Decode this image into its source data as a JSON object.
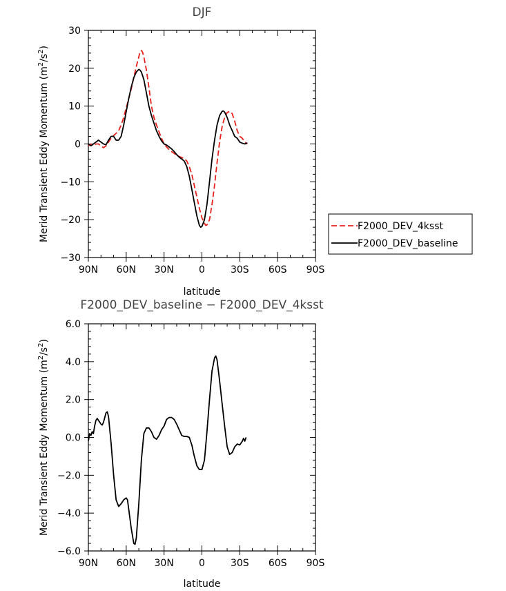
{
  "chart_data": [
    {
      "type": "line",
      "title": "DJF",
      "xlabel": "latitude",
      "ylabel": "Merid Transient Eddy Momentum (m",
      "ylabel_unit_tail": "/s",
      "ylabel_sup": "2",
      "ylabel_close": ")",
      "xlim": [
        90,
        -90
      ],
      "ylim": [
        -30,
        30
      ],
      "x_ticks": [
        90,
        60,
        30,
        0,
        -30,
        -60,
        -90
      ],
      "x_tick_labels": [
        "90N",
        "60N",
        "30N",
        "0",
        "30S",
        "60S",
        "90S"
      ],
      "y_ticks": [
        -30,
        -20,
        -10,
        0,
        10,
        20,
        30
      ],
      "y_tick_labels": [
        "−30",
        "−20",
        "−10",
        "0",
        "10",
        "20",
        "30"
      ],
      "legend_position": "right",
      "series": [
        {
          "name": "F2000_DEV_4ksst",
          "color": "#e8211c",
          "dash": "dashed",
          "points": [
            [
              90,
              -0.5
            ],
            [
              88,
              0
            ],
            [
              86,
              -0.5
            ],
            [
              84,
              0
            ],
            [
              82,
              0
            ],
            [
              80,
              -0.5
            ],
            [
              78,
              -1
            ],
            [
              76,
              -0.5
            ],
            [
              74,
              0.5
            ],
            [
              72,
              1.5
            ],
            [
              70,
              2.2
            ],
            [
              68,
              2.8
            ],
            [
              66,
              3.5
            ],
            [
              64,
              5
            ],
            [
              62,
              7
            ],
            [
              60,
              9.5
            ],
            [
              58,
              12
            ],
            [
              56,
              14.5
            ],
            [
              54,
              17.5
            ],
            [
              52,
              20.5
            ],
            [
              50,
              23
            ],
            [
              49,
              24.3
            ],
            [
              48,
              24.7
            ],
            [
              47,
              24.2
            ],
            [
              46,
              23
            ],
            [
              44,
              19.5
            ],
            [
              42,
              15
            ],
            [
              40,
              10
            ],
            [
              38,
              7
            ],
            [
              36,
              5
            ],
            [
              34,
              3.2
            ],
            [
              32,
              1.5
            ],
            [
              30,
              0
            ],
            [
              28,
              -0.8
            ],
            [
              26,
              -1.5
            ],
            [
              24,
              -2
            ],
            [
              22,
              -2.5
            ],
            [
              20,
              -3
            ],
            [
              18,
              -3.3
            ],
            [
              16,
              -3.6
            ],
            [
              14,
              -3.9
            ],
            [
              12,
              -4.5
            ],
            [
              10,
              -6
            ],
            [
              8,
              -8
            ],
            [
              6,
              -11
            ],
            [
              4,
              -14
            ],
            [
              2,
              -17
            ],
            [
              0,
              -19.5
            ],
            [
              -2,
              -21
            ],
            [
              -3,
              -21.5
            ],
            [
              -4,
              -21.4
            ],
            [
              -6,
              -20
            ],
            [
              -8,
              -16
            ],
            [
              -10,
              -11
            ],
            [
              -12,
              -5
            ],
            [
              -14,
              0.5
            ],
            [
              -16,
              4.5
            ],
            [
              -18,
              7
            ],
            [
              -20,
              8.3
            ],
            [
              -22,
              8.6
            ],
            [
              -24,
              8
            ],
            [
              -26,
              6
            ],
            [
              -28,
              3.5
            ],
            [
              -30,
              2
            ],
            [
              -32,
              1.5
            ],
            [
              -34,
              0.5
            ],
            [
              -36,
              0
            ]
          ]
        },
        {
          "name": "F2000_DEV_baseline",
          "color": "#000000",
          "dash": "solid",
          "points": [
            [
              90,
              0
            ],
            [
              88,
              -0.5
            ],
            [
              86,
              0
            ],
            [
              84,
              0.5
            ],
            [
              82,
              1
            ],
            [
              80,
              0.5
            ],
            [
              78,
              0
            ],
            [
              76,
              -0.2
            ],
            [
              74,
              1
            ],
            [
              72,
              2
            ],
            [
              70,
              2
            ],
            [
              68,
              1
            ],
            [
              66,
              1
            ],
            [
              64,
              2
            ],
            [
              62,
              5
            ],
            [
              60,
              8.5
            ],
            [
              58,
              12
            ],
            [
              56,
              15
            ],
            [
              54,
              17.5
            ],
            [
              52,
              19
            ],
            [
              50,
              19.7
            ],
            [
              49,
              19.5
            ],
            [
              48,
              19
            ],
            [
              46,
              17
            ],
            [
              44,
              13.5
            ],
            [
              42,
              10
            ],
            [
              40,
              7.5
            ],
            [
              38,
              5.5
            ],
            [
              36,
              3.5
            ],
            [
              34,
              2
            ],
            [
              32,
              0.8
            ],
            [
              30,
              0
            ],
            [
              28,
              -0.3
            ],
            [
              26,
              -0.8
            ],
            [
              24,
              -1.3
            ],
            [
              22,
              -2
            ],
            [
              20,
              -2.8
            ],
            [
              18,
              -3.5
            ],
            [
              16,
              -4
            ],
            [
              14,
              -4.5
            ],
            [
              12,
              -6
            ],
            [
              10,
              -8.5
            ],
            [
              8,
              -12
            ],
            [
              6,
              -15.5
            ],
            [
              4,
              -19
            ],
            [
              2,
              -21.5
            ],
            [
              1,
              -22
            ],
            [
              0,
              -21.8
            ],
            [
              -2,
              -20
            ],
            [
              -4,
              -16
            ],
            [
              -6,
              -10
            ],
            [
              -8,
              -4
            ],
            [
              -10,
              1
            ],
            [
              -12,
              5
            ],
            [
              -14,
              7.5
            ],
            [
              -16,
              8.6
            ],
            [
              -17,
              8.7
            ],
            [
              -18,
              8.4
            ],
            [
              -20,
              7
            ],
            [
              -22,
              5
            ],
            [
              -24,
              3.5
            ],
            [
              -26,
              2
            ],
            [
              -28,
              1.5
            ],
            [
              -30,
              0.5
            ],
            [
              -32,
              0.2
            ],
            [
              -34,
              0
            ],
            [
              -36,
              0.3
            ]
          ]
        }
      ]
    },
    {
      "type": "line",
      "title": "F2000_DEV_baseline − F2000_DEV_4ksst",
      "xlabel": "latitude",
      "ylabel": "Merid Transient Eddy Momentum (m",
      "ylabel_unit_tail": "/s",
      "ylabel_sup": "2",
      "ylabel_close": ")",
      "xlim": [
        90,
        -90
      ],
      "ylim": [
        -6,
        6
      ],
      "x_ticks": [
        90,
        60,
        30,
        0,
        -30,
        -60,
        -90
      ],
      "x_tick_labels": [
        "90N",
        "60N",
        "30N",
        "0",
        "30S",
        "60S",
        "90S"
      ],
      "y_ticks": [
        -6,
        -4,
        -2,
        0,
        2,
        4,
        6
      ],
      "y_tick_labels": [
        "−6.0",
        "−4.0",
        "−2.0",
        "0.0",
        "2.0",
        "4.0",
        "6.0"
      ],
      "series": [
        {
          "name": "",
          "color": "#000000",
          "dash": "solid",
          "points": [
            [
              90,
              -0.2
            ],
            [
              89,
              0.2
            ],
            [
              88,
              0.1
            ],
            [
              87,
              0.3
            ],
            [
              86,
              0.2
            ],
            [
              85,
              0.6
            ],
            [
              84,
              0.9
            ],
            [
              83,
              1
            ],
            [
              82,
              0.9
            ],
            [
              80,
              0.7
            ],
            [
              79,
              0.65
            ],
            [
              78,
              0.8
            ],
            [
              76,
              1.3
            ],
            [
              75,
              1.35
            ],
            [
              74,
              1.1
            ],
            [
              72,
              -0.3
            ],
            [
              70,
              -2
            ],
            [
              68,
              -3.3
            ],
            [
              66,
              -3.65
            ],
            [
              64,
              -3.5
            ],
            [
              62,
              -3.3
            ],
            [
              60,
              -3.2
            ],
            [
              59,
              -3.3
            ],
            [
              58,
              -3.8
            ],
            [
              56,
              -4.8
            ],
            [
              54,
              -5.6
            ],
            [
              53,
              -5.65
            ],
            [
              52,
              -5.3
            ],
            [
              50,
              -3.5
            ],
            [
              48,
              -1.2
            ],
            [
              46,
              0.2
            ],
            [
              44,
              0.5
            ],
            [
              42,
              0.5
            ],
            [
              40,
              0.3
            ],
            [
              38,
              0
            ],
            [
              36,
              -0.1
            ],
            [
              34,
              0.1
            ],
            [
              32,
              0.4
            ],
            [
              30,
              0.6
            ],
            [
              28,
              0.95
            ],
            [
              26,
              1.05
            ],
            [
              24,
              1.05
            ],
            [
              22,
              0.95
            ],
            [
              20,
              0.7
            ],
            [
              18,
              0.4
            ],
            [
              16,
              0.1
            ],
            [
              14,
              0.05
            ],
            [
              12,
              0.05
            ],
            [
              10,
              0
            ],
            [
              8,
              -0.4
            ],
            [
              6,
              -1
            ],
            [
              4,
              -1.5
            ],
            [
              2,
              -1.7
            ],
            [
              0,
              -1.7
            ],
            [
              -2,
              -1.2
            ],
            [
              -4,
              0.3
            ],
            [
              -6,
              2
            ],
            [
              -8,
              3.5
            ],
            [
              -10,
              4.2
            ],
            [
              -11,
              4.3
            ],
            [
              -12,
              4.1
            ],
            [
              -14,
              3
            ],
            [
              -16,
              1.8
            ],
            [
              -18,
              0.6
            ],
            [
              -20,
              -0.5
            ],
            [
              -22,
              -0.9
            ],
            [
              -24,
              -0.8
            ],
            [
              -26,
              -0.5
            ],
            [
              -28,
              -0.35
            ],
            [
              -30,
              -0.4
            ],
            [
              -32,
              -0.2
            ],
            [
              -33,
              -0.05
            ],
            [
              -34,
              -0.2
            ],
            [
              -35,
              0
            ]
          ]
        }
      ]
    }
  ]
}
